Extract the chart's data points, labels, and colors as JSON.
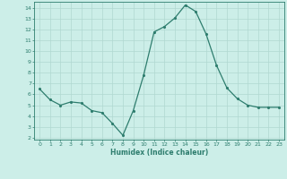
{
  "x": [
    0,
    1,
    2,
    3,
    4,
    5,
    6,
    7,
    8,
    9,
    10,
    11,
    12,
    13,
    14,
    15,
    16,
    17,
    18,
    19,
    20,
    21,
    22,
    23
  ],
  "y": [
    6.5,
    5.5,
    5.0,
    5.3,
    5.2,
    4.5,
    4.3,
    3.3,
    2.2,
    4.5,
    7.8,
    11.8,
    12.3,
    13.1,
    14.3,
    13.7,
    11.6,
    8.7,
    6.6,
    5.6,
    5.0,
    4.8,
    4.8,
    4.8
  ],
  "xlabel": "Humidex (Indice chaleur)",
  "line_color": "#2e7d6e",
  "marker_color": "#2e7d6e",
  "bg_color": "#cceee8",
  "grid_color": "#b0d8d0",
  "axis_color": "#2e7d6e",
  "tick_color": "#2e7d6e",
  "xlabel_color": "#2e7d6e",
  "ylim": [
    1.8,
    14.6
  ],
  "xlim": [
    -0.5,
    23.5
  ],
  "yticks": [
    2,
    3,
    4,
    5,
    6,
    7,
    8,
    9,
    10,
    11,
    12,
    13,
    14
  ],
  "xticks": [
    0,
    1,
    2,
    3,
    4,
    5,
    6,
    7,
    8,
    9,
    10,
    11,
    12,
    13,
    14,
    15,
    16,
    17,
    18,
    19,
    20,
    21,
    22,
    23
  ]
}
